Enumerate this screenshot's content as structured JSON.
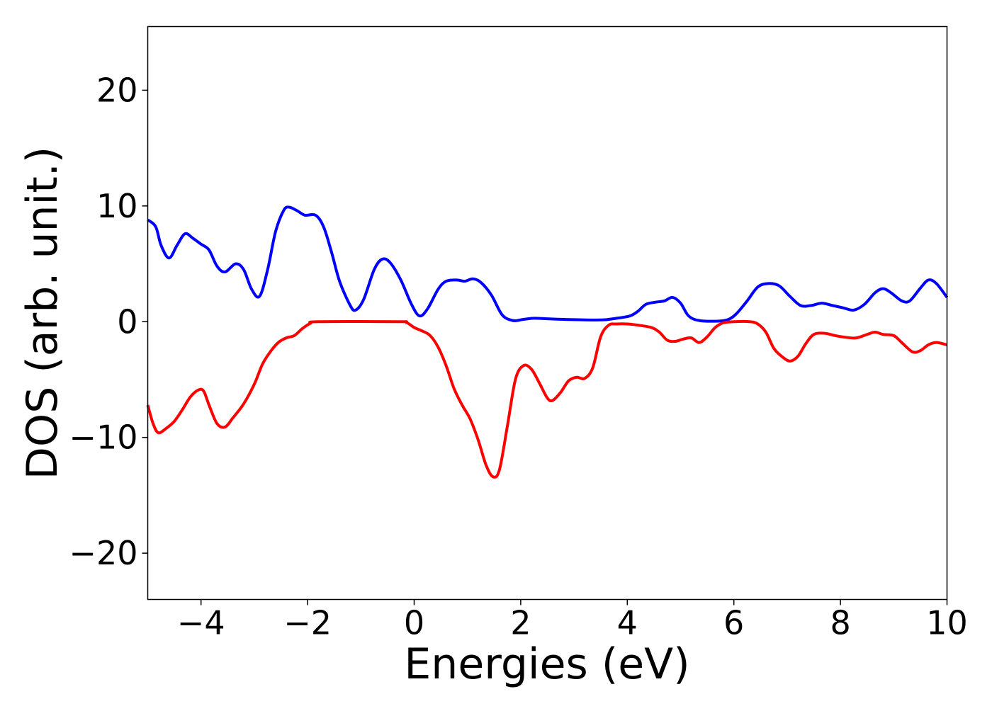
{
  "chart_data": {
    "type": "line",
    "title": "",
    "xlabel": "Energies (eV)",
    "ylabel": "DOS (arb. unit.)",
    "xlim": [
      -5,
      10
    ],
    "ylim": [
      -24,
      25.5
    ],
    "grid": false,
    "legend": "none",
    "x_ticks": [
      -4,
      -2,
      0,
      2,
      4,
      6,
      8,
      10
    ],
    "x_tick_labels": [
      "−4",
      "−2",
      "0",
      "2",
      "4",
      "6",
      "8",
      "10"
    ],
    "y_ticks": [
      20,
      10,
      0,
      -10,
      -20
    ],
    "y_tick_labels": [
      "20",
      "10",
      "0",
      "−10",
      "−20"
    ],
    "series": [
      {
        "color": "#0000ff",
        "points": [
          [
            -5.0,
            8.8
          ],
          [
            -4.85,
            8.2
          ],
          [
            -4.75,
            6.6
          ],
          [
            -4.6,
            5.5
          ],
          [
            -4.45,
            6.6
          ],
          [
            -4.3,
            7.6
          ],
          [
            -4.15,
            7.2
          ],
          [
            -4.0,
            6.7
          ],
          [
            -3.85,
            6.2
          ],
          [
            -3.7,
            4.8
          ],
          [
            -3.55,
            4.3
          ],
          [
            -3.35,
            5.0
          ],
          [
            -3.2,
            4.5
          ],
          [
            -3.05,
            2.8
          ],
          [
            -2.9,
            2.2
          ],
          [
            -2.75,
            4.5
          ],
          [
            -2.6,
            7.8
          ],
          [
            -2.45,
            9.6
          ],
          [
            -2.35,
            9.9
          ],
          [
            -2.2,
            9.6
          ],
          [
            -2.05,
            9.2
          ],
          [
            -1.85,
            9.2
          ],
          [
            -1.7,
            8.2
          ],
          [
            -1.55,
            6.0
          ],
          [
            -1.4,
            3.5
          ],
          [
            -1.2,
            1.4
          ],
          [
            -1.1,
            1.0
          ],
          [
            -0.95,
            1.9
          ],
          [
            -0.75,
            4.5
          ],
          [
            -0.6,
            5.4
          ],
          [
            -0.45,
            5.1
          ],
          [
            -0.25,
            3.6
          ],
          [
            -0.05,
            1.5
          ],
          [
            0.1,
            0.5
          ],
          [
            0.25,
            1.1
          ],
          [
            0.45,
            2.8
          ],
          [
            0.6,
            3.5
          ],
          [
            0.8,
            3.6
          ],
          [
            0.95,
            3.5
          ],
          [
            1.1,
            3.7
          ],
          [
            1.25,
            3.4
          ],
          [
            1.45,
            2.3
          ],
          [
            1.65,
            0.6
          ],
          [
            1.85,
            0.1
          ],
          [
            2.05,
            0.2
          ],
          [
            2.25,
            0.3
          ],
          [
            2.5,
            0.25
          ],
          [
            2.8,
            0.2
          ],
          [
            3.5,
            0.15
          ],
          [
            3.8,
            0.3
          ],
          [
            4.05,
            0.5
          ],
          [
            4.2,
            0.9
          ],
          [
            4.35,
            1.5
          ],
          [
            4.55,
            1.7
          ],
          [
            4.7,
            1.8
          ],
          [
            4.85,
            2.1
          ],
          [
            5.0,
            1.6
          ],
          [
            5.15,
            0.5
          ],
          [
            5.35,
            0.1
          ],
          [
            5.7,
            0.05
          ],
          [
            5.9,
            0.2
          ],
          [
            6.05,
            0.7
          ],
          [
            6.25,
            1.8
          ],
          [
            6.45,
            3.0
          ],
          [
            6.65,
            3.3
          ],
          [
            6.85,
            3.1
          ],
          [
            7.05,
            2.2
          ],
          [
            7.25,
            1.4
          ],
          [
            7.45,
            1.4
          ],
          [
            7.65,
            1.6
          ],
          [
            7.85,
            1.4
          ],
          [
            8.05,
            1.2
          ],
          [
            8.25,
            1.0
          ],
          [
            8.45,
            1.5
          ],
          [
            8.65,
            2.5
          ],
          [
            8.8,
            2.85
          ],
          [
            8.95,
            2.5
          ],
          [
            9.15,
            1.8
          ],
          [
            9.3,
            1.8
          ],
          [
            9.5,
            2.9
          ],
          [
            9.65,
            3.6
          ],
          [
            9.8,
            3.3
          ],
          [
            10.0,
            2.1
          ]
        ]
      },
      {
        "color": "#ff0000",
        "points": [
          [
            -5.0,
            -7.2
          ],
          [
            -4.9,
            -8.8
          ],
          [
            -4.8,
            -9.6
          ],
          [
            -4.65,
            -9.2
          ],
          [
            -4.5,
            -8.6
          ],
          [
            -4.35,
            -7.6
          ],
          [
            -4.2,
            -6.5
          ],
          [
            -4.05,
            -5.9
          ],
          [
            -3.95,
            -6.0
          ],
          [
            -3.85,
            -7.2
          ],
          [
            -3.7,
            -8.8
          ],
          [
            -3.55,
            -9.1
          ],
          [
            -3.4,
            -8.3
          ],
          [
            -3.2,
            -7.1
          ],
          [
            -3.0,
            -5.4
          ],
          [
            -2.85,
            -3.7
          ],
          [
            -2.7,
            -2.6
          ],
          [
            -2.55,
            -1.8
          ],
          [
            -2.4,
            -1.4
          ],
          [
            -2.25,
            -1.2
          ],
          [
            -2.1,
            -0.6
          ],
          [
            -1.95,
            -0.15
          ],
          [
            -1.8,
            0.0
          ],
          [
            -0.3,
            0.0
          ],
          [
            -0.15,
            -0.05
          ],
          [
            0.0,
            -0.5
          ],
          [
            0.15,
            -0.8
          ],
          [
            0.3,
            -1.2
          ],
          [
            0.45,
            -2.2
          ],
          [
            0.6,
            -3.8
          ],
          [
            0.75,
            -5.8
          ],
          [
            0.9,
            -7.2
          ],
          [
            1.05,
            -8.4
          ],
          [
            1.2,
            -10.2
          ],
          [
            1.35,
            -12.4
          ],
          [
            1.48,
            -13.4
          ],
          [
            1.6,
            -12.8
          ],
          [
            1.75,
            -9.0
          ],
          [
            1.9,
            -5.0
          ],
          [
            2.05,
            -3.8
          ],
          [
            2.2,
            -4.1
          ],
          [
            2.35,
            -5.3
          ],
          [
            2.5,
            -6.6
          ],
          [
            2.6,
            -6.8
          ],
          [
            2.75,
            -6.1
          ],
          [
            2.9,
            -5.1
          ],
          [
            3.05,
            -4.8
          ],
          [
            3.2,
            -4.9
          ],
          [
            3.35,
            -4.0
          ],
          [
            3.5,
            -1.3
          ],
          [
            3.65,
            -0.3
          ],
          [
            3.8,
            -0.2
          ],
          [
            4.0,
            -0.2
          ],
          [
            4.2,
            -0.3
          ],
          [
            4.45,
            -0.5
          ],
          [
            4.6,
            -0.9
          ],
          [
            4.75,
            -1.6
          ],
          [
            4.9,
            -1.7
          ],
          [
            5.05,
            -1.5
          ],
          [
            5.2,
            -1.4
          ],
          [
            5.35,
            -1.8
          ],
          [
            5.5,
            -1.3
          ],
          [
            5.65,
            -0.5
          ],
          [
            5.8,
            -0.1
          ],
          [
            6.0,
            0.0
          ],
          [
            6.3,
            0.0
          ],
          [
            6.45,
            -0.2
          ],
          [
            6.6,
            -0.9
          ],
          [
            6.75,
            -2.3
          ],
          [
            6.9,
            -3.0
          ],
          [
            7.05,
            -3.4
          ],
          [
            7.2,
            -3.0
          ],
          [
            7.35,
            -1.9
          ],
          [
            7.5,
            -1.1
          ],
          [
            7.7,
            -1.0
          ],
          [
            7.9,
            -1.2
          ],
          [
            8.1,
            -1.35
          ],
          [
            8.3,
            -1.4
          ],
          [
            8.5,
            -1.1
          ],
          [
            8.65,
            -0.9
          ],
          [
            8.8,
            -1.1
          ],
          [
            9.0,
            -1.2
          ],
          [
            9.15,
            -1.8
          ],
          [
            9.35,
            -2.6
          ],
          [
            9.5,
            -2.5
          ],
          [
            9.65,
            -2.0
          ],
          [
            9.8,
            -1.8
          ],
          [
            10.0,
            -2.0
          ]
        ]
      }
    ]
  }
}
